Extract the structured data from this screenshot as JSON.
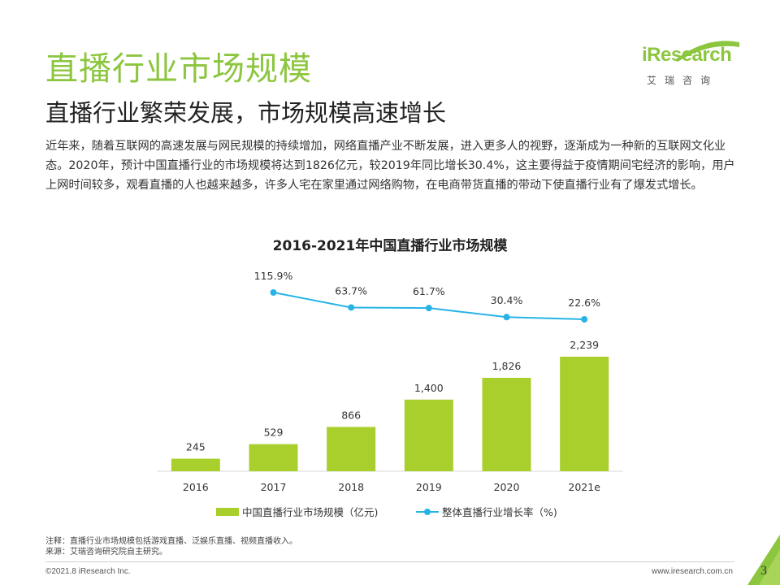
{
  "header": {
    "title": "直播行业市场规模",
    "subtitle": "直播行业繁荣发展，市场规模高速增长",
    "intro": "近年来，随着互联网的高速发展与网民规模的持续增加，网络直播产业不断发展，进入更多人的视野，逐渐成为一种新的互联网文化业态。2020年，预计中国直播行业的市场规模将达到1826亿元，较2019年同比增长30.4%，这主要得益于疫情期间宅经济的影响，用户上网时间较多，观看直播的人也越来越多，许多人宅在家里通过网络购物，在电商带货直播的带动下使直播行业有了爆发式增长。"
  },
  "logo": {
    "text": "iResearch",
    "sub": "艾瑞咨询",
    "color": "#8cc63f"
  },
  "chart_data": {
    "type": "bar",
    "title": "2016-2021年中国直播行业市场规模",
    "categories": [
      "2016",
      "2017",
      "2018",
      "2019",
      "2020",
      "2021e"
    ],
    "series": [
      {
        "name": "中国直播行业市场规模（亿元)",
        "type": "bar",
        "color": "#a8cf2b",
        "values": [
          245,
          529,
          866,
          1400,
          1826,
          2239
        ],
        "labels": [
          "245",
          "529",
          "866",
          "1,400",
          "1,826",
          "2,239"
        ]
      },
      {
        "name": "整体直播行业增长率（%)",
        "type": "line",
        "color": "#27b4e5",
        "values": [
          null,
          115.9,
          63.7,
          61.7,
          30.4,
          22.6
        ],
        "labels": [
          "",
          "115.9%",
          "63.7%",
          "61.7%",
          "30.4%",
          "22.6%"
        ]
      }
    ],
    "grid": false,
    "legend_position": "bottom"
  },
  "notes": {
    "note": "注释：直播行业市场规模包括游戏直播、泛娱乐直播、视频直播收入。",
    "source": "来源：艾瑞咨询研究院自主研究。"
  },
  "footer": {
    "copyright": "©2021.8 iResearch Inc.",
    "url": "www.iresearch.com.cn",
    "page": "3"
  }
}
